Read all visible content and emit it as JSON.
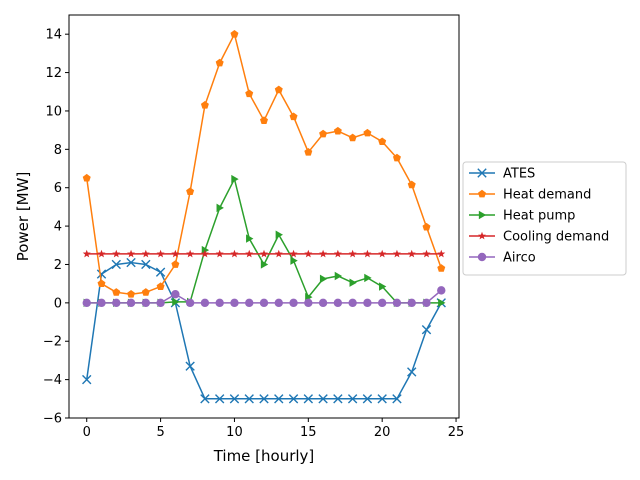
{
  "chart_data": {
    "type": "line",
    "title": "",
    "xlabel": "Time [hourly]",
    "ylabel": "Power [MW]",
    "xlim": [
      -1.2,
      25.2
    ],
    "ylim": [
      -6,
      15
    ],
    "xticks": [
      0,
      5,
      10,
      15,
      20,
      25
    ],
    "yticks": [
      -6,
      -4,
      -2,
      0,
      2,
      4,
      6,
      8,
      10,
      12,
      14
    ],
    "grid": false,
    "legend_position": "center-right-outside",
    "x": [
      0,
      1,
      2,
      3,
      4,
      5,
      6,
      7,
      8,
      9,
      10,
      11,
      12,
      13,
      14,
      15,
      16,
      17,
      18,
      19,
      20,
      21,
      22,
      23,
      24
    ],
    "series": [
      {
        "name": "ATES",
        "color": "#1f77b4",
        "marker": "x",
        "values": [
          -4.0,
          1.5,
          2.0,
          2.1,
          2.0,
          1.6,
          0.0,
          -3.3,
          -5.0,
          -5.0,
          -5.0,
          -5.0,
          -5.0,
          -5.0,
          -5.0,
          -5.0,
          -5.0,
          -5.0,
          -5.0,
          -5.0,
          -5.0,
          -5.0,
          -3.6,
          -1.4,
          0.0
        ]
      },
      {
        "name": "Heat demand",
        "color": "#ff7f0e",
        "marker": "pentagon",
        "values": [
          6.5,
          1.0,
          0.55,
          0.45,
          0.55,
          0.85,
          2.0,
          5.8,
          10.3,
          12.5,
          14.0,
          10.9,
          9.5,
          11.1,
          9.7,
          7.85,
          8.8,
          8.95,
          8.6,
          8.85,
          8.4,
          7.55,
          6.15,
          3.95,
          1.8
        ]
      },
      {
        "name": "Heat pump",
        "color": "#2ca02c",
        "marker": "triangle-right",
        "values": [
          0,
          0,
          0,
          0,
          0,
          0,
          0.05,
          0.05,
          2.75,
          4.95,
          6.45,
          3.35,
          2.0,
          3.55,
          2.2,
          0.3,
          1.25,
          1.4,
          1.05,
          1.3,
          0.85,
          0.0,
          0,
          0,
          0
        ]
      },
      {
        "name": "Cooling demand",
        "color": "#d62728",
        "marker": "star",
        "values": [
          2.55,
          2.55,
          2.55,
          2.55,
          2.55,
          2.55,
          2.55,
          2.55,
          2.55,
          2.55,
          2.55,
          2.55,
          2.55,
          2.55,
          2.55,
          2.55,
          2.55,
          2.55,
          2.55,
          2.55,
          2.55,
          2.55,
          2.55,
          2.55,
          2.55
        ]
      },
      {
        "name": "Airco",
        "color": "#9467bd",
        "marker": "circle",
        "values": [
          0,
          0,
          0,
          0,
          0,
          0,
          0.45,
          0,
          0,
          0,
          0,
          0,
          0,
          0,
          0,
          0,
          0,
          0,
          0,
          0,
          0,
          0,
          0,
          0,
          0.65
        ]
      }
    ]
  }
}
